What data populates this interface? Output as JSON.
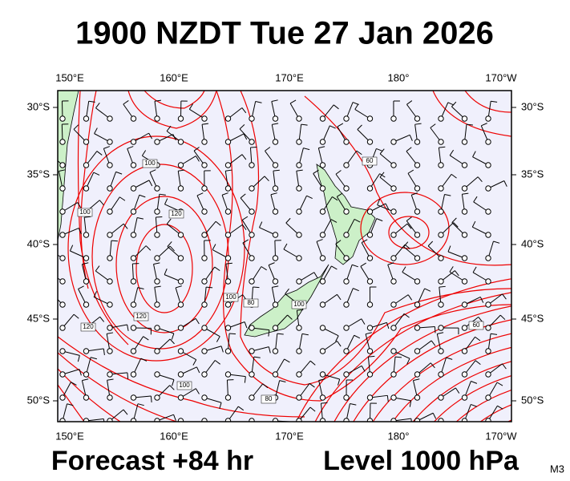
{
  "header": {
    "title": "1900 NZDT Tue 27 Jan 2026"
  },
  "axes": {
    "top": [
      "150°E",
      "160°E",
      "170°E",
      "180°",
      "170°W"
    ],
    "bottom": [
      "150°E",
      "160°E",
      "170°E",
      "180°",
      "170°W"
    ],
    "left": [
      "30°S",
      "35°S",
      "40°S",
      "45°S",
      "50°S"
    ],
    "right": [
      "30°S",
      "35°S",
      "40°S",
      "45°S",
      "50°S"
    ]
  },
  "contour_labels": [
    "100",
    "60",
    "100",
    "120",
    "100",
    "80",
    "100",
    "120",
    "120",
    "100",
    "80",
    "60"
  ],
  "footer": {
    "forecast": "Forecast +84 hr",
    "level": "Level 1000 hPa",
    "code": "M3"
  }
}
